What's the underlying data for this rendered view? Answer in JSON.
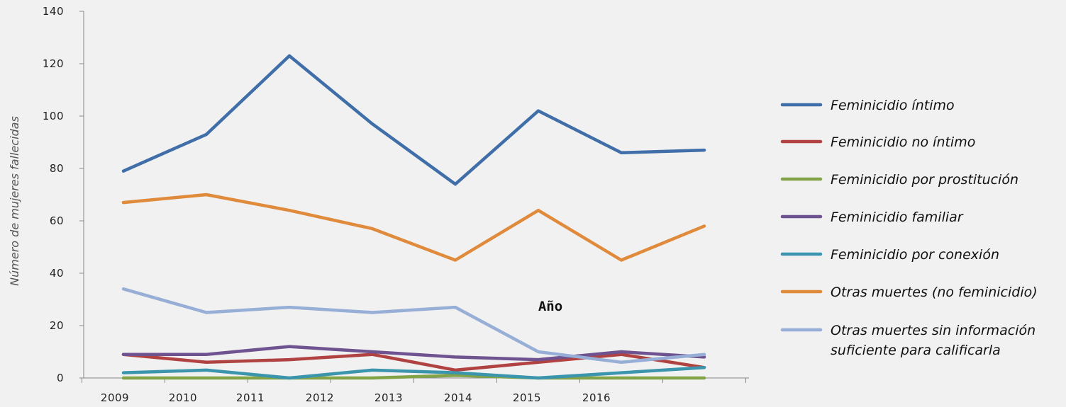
{
  "chart_data": {
    "type": "line",
    "title": "",
    "xlabel": "Año",
    "ylabel": "Número de mujeres fallecidas",
    "x_ticks": [
      "2009",
      "2010",
      "2011",
      "2012",
      "2013",
      "2014",
      "2015",
      "2016"
    ],
    "y_ticks": [
      "0",
      "20",
      "40",
      "60",
      "80",
      "100",
      "120",
      "140"
    ],
    "ylim": [
      0,
      140
    ],
    "grid": false,
    "legend_position": "right",
    "series": [
      {
        "name": "Feminicidio íntimo",
        "color": "#3f6ea8",
        "values": [
          79,
          93,
          123,
          97,
          74,
          102,
          86,
          87
        ]
      },
      {
        "name": "Feminicidio no íntimo",
        "color": "#b04341",
        "values": [
          9,
          6,
          7,
          9,
          3,
          6,
          9,
          4
        ]
      },
      {
        "name": "Feminicidio por prostitución",
        "color": "#82a447",
        "values": [
          0,
          0,
          0,
          0,
          1,
          0,
          0,
          0
        ]
      },
      {
        "name": "Feminicidio familiar",
        "color": "#6f5390",
        "values": [
          9,
          9,
          12,
          10,
          8,
          7,
          10,
          8
        ]
      },
      {
        "name": "Feminicidio por conexión",
        "color": "#3a95ad",
        "values": [
          2,
          3,
          0,
          3,
          2,
          0,
          2,
          4
        ]
      },
      {
        "name": "Otras muertes  (no feminicidio)",
        "color": "#e08a3c",
        "values": [
          67,
          70,
          64,
          57,
          45,
          64,
          45,
          58
        ]
      },
      {
        "name": "Otras muertes sin información suficiente para calificarla",
        "color": "#97afd6",
        "values": [
          34,
          25,
          27,
          25,
          27,
          10,
          6,
          9
        ]
      }
    ]
  }
}
